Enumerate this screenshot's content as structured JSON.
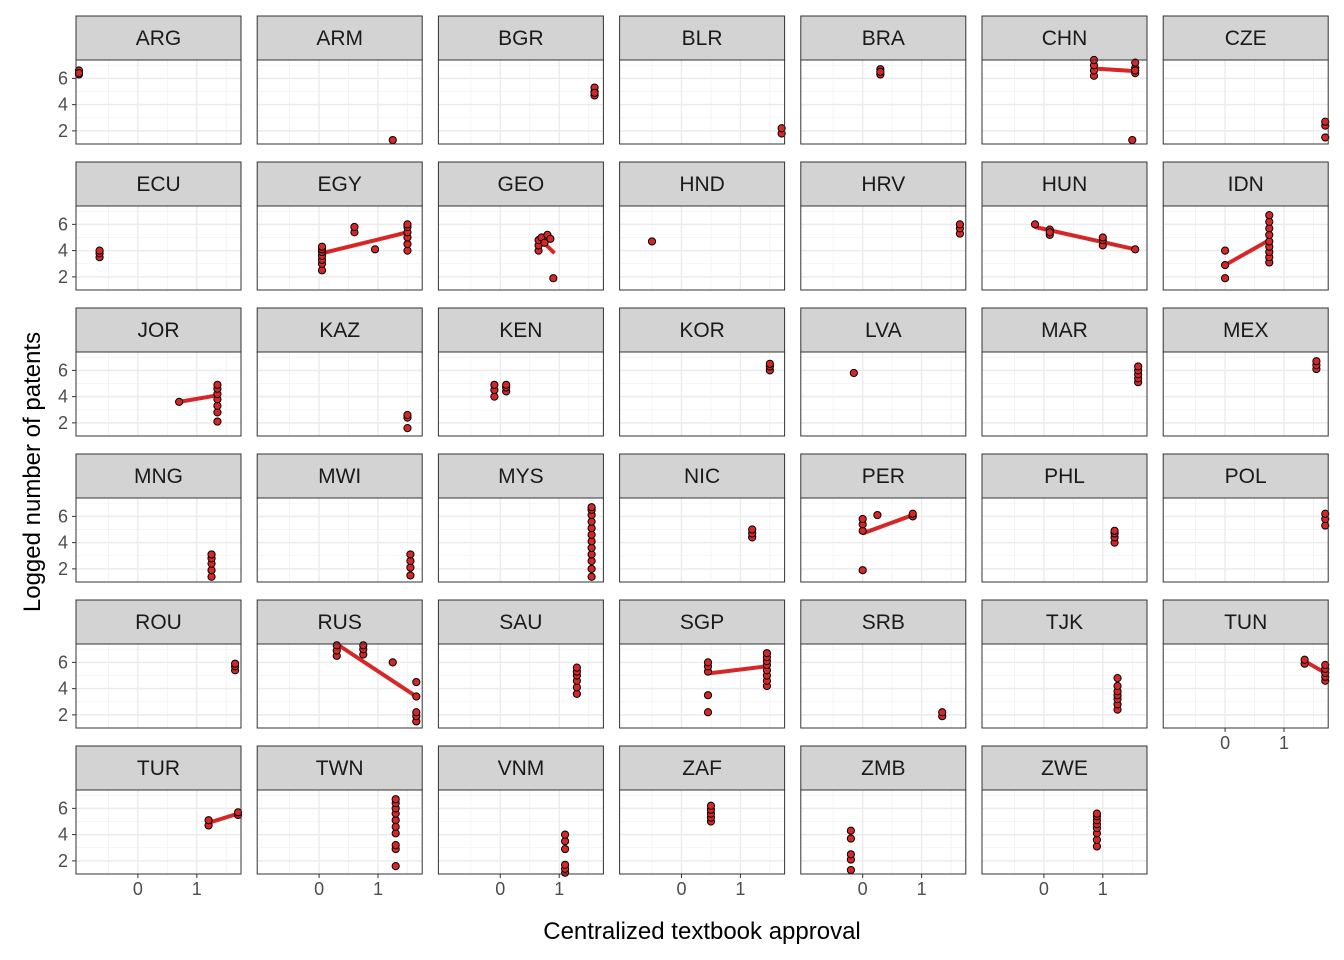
{
  "chart_data": {
    "type": "scatter",
    "facet_by": "country",
    "xlabel": "Centralized textbook approval",
    "ylabel": "Logged number of patents",
    "xlim": [
      -1.05,
      1.75
    ],
    "ylim": [
      1.0,
      7.4
    ],
    "x_ticks": [
      0,
      1
    ],
    "y_ticks": [
      2,
      4,
      6
    ],
    "grid": true,
    "point_fill": "#d62728",
    "point_stroke": "#000000",
    "fit_line_color": "#d62728",
    "strip_fill": "#d3d3d3",
    "panels": [
      {
        "label": "ARG",
        "points": [
          [
            -1.0,
            6.3
          ],
          [
            -1.0,
            6.6
          ],
          [
            -1.0,
            6.4
          ]
        ]
      },
      {
        "label": "ARM",
        "points": [
          [
            1.25,
            1.3
          ]
        ]
      },
      {
        "label": "BGR",
        "points": [
          [
            1.6,
            4.7
          ],
          [
            1.6,
            5.0
          ],
          [
            1.6,
            5.3
          ],
          [
            1.6,
            4.9
          ]
        ]
      },
      {
        "label": "BLR",
        "points": [
          [
            1.7,
            1.8
          ],
          [
            1.7,
            2.2
          ]
        ]
      },
      {
        "label": "BRA",
        "points": [
          [
            0.3,
            6.3
          ],
          [
            0.3,
            6.7
          ],
          [
            0.3,
            6.5
          ]
        ]
      },
      {
        "label": "CHN",
        "points": [
          [
            0.85,
            6.2
          ],
          [
            0.85,
            6.6
          ],
          [
            0.85,
            7.0
          ],
          [
            0.85,
            7.4
          ],
          [
            1.55,
            6.4
          ],
          [
            1.55,
            6.8
          ],
          [
            1.55,
            7.2
          ],
          [
            1.55,
            6.6
          ],
          [
            1.5,
            1.3
          ]
        ],
        "fit": [
          [
            0.85,
            6.75
          ],
          [
            1.55,
            6.55
          ]
        ]
      },
      {
        "label": "CZE",
        "points": [
          [
            1.7,
            1.5
          ],
          [
            1.7,
            2.4
          ],
          [
            1.7,
            2.7
          ]
        ]
      },
      {
        "label": "ECU",
        "points": [
          [
            -0.65,
            3.5
          ],
          [
            -0.65,
            3.8
          ],
          [
            -0.65,
            4.0
          ]
        ]
      },
      {
        "label": "EGY",
        "points": [
          [
            0.05,
            2.5
          ],
          [
            0.05,
            3.0
          ],
          [
            0.05,
            3.3
          ],
          [
            0.05,
            3.6
          ],
          [
            0.05,
            3.9
          ],
          [
            0.05,
            4.1
          ],
          [
            0.05,
            4.3
          ],
          [
            0.6,
            5.4
          ],
          [
            0.6,
            5.8
          ],
          [
            0.95,
            4.1
          ],
          [
            1.5,
            4.0
          ],
          [
            1.5,
            4.5
          ],
          [
            1.5,
            5.0
          ],
          [
            1.5,
            5.4
          ],
          [
            1.5,
            5.8
          ],
          [
            1.5,
            6.0
          ]
        ],
        "fit": [
          [
            0.05,
            3.8
          ],
          [
            1.5,
            5.4
          ]
        ]
      },
      {
        "label": "GEO",
        "points": [
          [
            0.65,
            4.0
          ],
          [
            0.65,
            4.4
          ],
          [
            0.65,
            4.8
          ],
          [
            0.7,
            5.0
          ],
          [
            0.75,
            4.6
          ],
          [
            0.8,
            5.2
          ],
          [
            0.85,
            4.9
          ],
          [
            0.9,
            1.9
          ]
        ],
        "fit": [
          [
            0.65,
            5.0
          ],
          [
            0.92,
            3.8
          ]
        ]
      },
      {
        "label": "HND",
        "points": [
          [
            -0.5,
            4.7
          ]
        ]
      },
      {
        "label": "HRV",
        "points": [
          [
            1.65,
            5.3
          ],
          [
            1.65,
            5.7
          ],
          [
            1.65,
            6.0
          ]
        ]
      },
      {
        "label": "HUN",
        "points": [
          [
            -0.15,
            6.0
          ],
          [
            0.1,
            5.2
          ],
          [
            0.1,
            5.6
          ],
          [
            0.1,
            5.4
          ],
          [
            1.0,
            4.4
          ],
          [
            1.0,
            4.8
          ],
          [
            1.0,
            5.0
          ],
          [
            1.55,
            4.1
          ]
        ],
        "fit": [
          [
            -0.15,
            5.8
          ],
          [
            1.55,
            4.1
          ]
        ]
      },
      {
        "label": "IDN",
        "points": [
          [
            0.0,
            1.9
          ],
          [
            0.0,
            2.9
          ],
          [
            0.0,
            4.0
          ],
          [
            0.75,
            3.1
          ],
          [
            0.75,
            3.5
          ],
          [
            0.75,
            3.9
          ],
          [
            0.75,
            4.3
          ],
          [
            0.75,
            4.7
          ],
          [
            0.75,
            5.2
          ],
          [
            0.75,
            5.7
          ],
          [
            0.75,
            6.2
          ],
          [
            0.75,
            6.7
          ]
        ],
        "fit": [
          [
            0.0,
            2.9
          ],
          [
            0.75,
            4.8
          ]
        ]
      },
      {
        "label": "JOR",
        "points": [
          [
            0.7,
            3.6
          ],
          [
            1.35,
            2.1
          ],
          [
            1.35,
            2.8
          ],
          [
            1.35,
            3.3
          ],
          [
            1.35,
            3.8
          ],
          [
            1.35,
            4.2
          ],
          [
            1.35,
            4.6
          ],
          [
            1.35,
            4.9
          ]
        ],
        "fit": [
          [
            0.7,
            3.6
          ],
          [
            1.35,
            4.1
          ]
        ]
      },
      {
        "label": "KAZ",
        "points": [
          [
            1.5,
            1.6
          ],
          [
            1.5,
            2.4
          ],
          [
            1.5,
            2.6
          ]
        ]
      },
      {
        "label": "KEN",
        "points": [
          [
            -0.1,
            4.0
          ],
          [
            -0.1,
            4.5
          ],
          [
            -0.1,
            4.9
          ],
          [
            0.1,
            4.4
          ],
          [
            0.1,
            4.7
          ],
          [
            0.1,
            4.9
          ]
        ]
      },
      {
        "label": "KOR",
        "points": [
          [
            1.5,
            6.0
          ],
          [
            1.5,
            6.3
          ],
          [
            1.5,
            6.5
          ]
        ]
      },
      {
        "label": "LVA",
        "points": [
          [
            -0.15,
            5.8
          ]
        ]
      },
      {
        "label": "MAR",
        "points": [
          [
            1.6,
            5.1
          ],
          [
            1.6,
            5.4
          ],
          [
            1.6,
            5.7
          ],
          [
            1.6,
            6.0
          ],
          [
            1.6,
            6.3
          ]
        ]
      },
      {
        "label": "MEX",
        "points": [
          [
            1.55,
            6.1
          ],
          [
            1.55,
            6.4
          ],
          [
            1.55,
            6.7
          ]
        ]
      },
      {
        "label": "MNG",
        "points": [
          [
            1.25,
            1.4
          ],
          [
            1.25,
            1.9
          ],
          [
            1.25,
            2.4
          ],
          [
            1.25,
            2.8
          ],
          [
            1.25,
            3.1
          ]
        ]
      },
      {
        "label": "MWI",
        "points": [
          [
            1.55,
            1.5
          ],
          [
            1.55,
            2.1
          ],
          [
            1.55,
            2.6
          ],
          [
            1.55,
            3.1
          ]
        ]
      },
      {
        "label": "MYS",
        "points": [
          [
            1.55,
            1.4
          ],
          [
            1.55,
            2.0
          ],
          [
            1.55,
            2.6
          ],
          [
            1.55,
            3.1
          ],
          [
            1.55,
            3.6
          ],
          [
            1.55,
            4.1
          ],
          [
            1.55,
            4.6
          ],
          [
            1.55,
            5.1
          ],
          [
            1.55,
            5.6
          ],
          [
            1.55,
            6.1
          ],
          [
            1.55,
            6.5
          ],
          [
            1.55,
            6.7
          ]
        ]
      },
      {
        "label": "NIC",
        "points": [
          [
            1.2,
            4.4
          ],
          [
            1.2,
            4.7
          ],
          [
            1.2,
            5.0
          ]
        ]
      },
      {
        "label": "PER",
        "points": [
          [
            0.0,
            1.9
          ],
          [
            0.0,
            4.9
          ],
          [
            0.0,
            5.4
          ],
          [
            0.0,
            5.8
          ],
          [
            0.25,
            6.1
          ],
          [
            0.85,
            6.0
          ],
          [
            0.85,
            6.2
          ]
        ],
        "fit": [
          [
            0.0,
            4.7
          ],
          [
            0.85,
            6.1
          ]
        ]
      },
      {
        "label": "PHL",
        "points": [
          [
            1.2,
            4.0
          ],
          [
            1.2,
            4.4
          ],
          [
            1.2,
            4.7
          ],
          [
            1.2,
            4.9
          ]
        ]
      },
      {
        "label": "POL",
        "points": [
          [
            1.7,
            5.3
          ],
          [
            1.7,
            5.8
          ],
          [
            1.7,
            6.2
          ]
        ]
      },
      {
        "label": "ROU",
        "points": [
          [
            1.65,
            5.4
          ],
          [
            1.65,
            5.7
          ],
          [
            1.65,
            5.9
          ]
        ]
      },
      {
        "label": "RUS",
        "points": [
          [
            0.3,
            6.5
          ],
          [
            0.3,
            6.9
          ],
          [
            0.3,
            7.3
          ],
          [
            0.75,
            6.6
          ],
          [
            0.75,
            7.0
          ],
          [
            0.75,
            7.3
          ],
          [
            1.25,
            6.0
          ],
          [
            1.65,
            1.5
          ],
          [
            1.65,
            1.9
          ],
          [
            1.65,
            2.2
          ],
          [
            1.65,
            3.4
          ],
          [
            1.65,
            4.5
          ]
        ],
        "fit": [
          [
            0.3,
            7.4
          ],
          [
            1.65,
            3.4
          ]
        ]
      },
      {
        "label": "SAU",
        "points": [
          [
            1.3,
            3.6
          ],
          [
            1.3,
            4.1
          ],
          [
            1.3,
            4.6
          ],
          [
            1.3,
            5.0
          ],
          [
            1.3,
            5.3
          ],
          [
            1.3,
            5.6
          ]
        ]
      },
      {
        "label": "SGP",
        "points": [
          [
            0.45,
            2.2
          ],
          [
            0.45,
            3.5
          ],
          [
            0.45,
            5.3
          ],
          [
            0.45,
            5.7
          ],
          [
            0.45,
            6.0
          ],
          [
            1.45,
            4.2
          ],
          [
            1.45,
            4.6
          ],
          [
            1.45,
            5.0
          ],
          [
            1.45,
            5.4
          ],
          [
            1.45,
            5.8
          ],
          [
            1.45,
            6.1
          ],
          [
            1.45,
            6.4
          ],
          [
            1.45,
            6.7
          ]
        ],
        "fit": [
          [
            0.45,
            5.15
          ],
          [
            1.45,
            5.7
          ]
        ]
      },
      {
        "label": "SRB",
        "points": [
          [
            1.35,
            1.9
          ],
          [
            1.35,
            2.2
          ]
        ]
      },
      {
        "label": "TJK",
        "points": [
          [
            1.25,
            2.4
          ],
          [
            1.25,
            2.8
          ],
          [
            1.25,
            3.2
          ],
          [
            1.25,
            3.5
          ],
          [
            1.25,
            3.8
          ],
          [
            1.25,
            4.2
          ],
          [
            1.25,
            4.8
          ]
        ]
      },
      {
        "label": "TUN",
        "points": [
          [
            1.35,
            5.9
          ],
          [
            1.35,
            6.2
          ],
          [
            1.7,
            4.6
          ],
          [
            1.7,
            4.9
          ],
          [
            1.7,
            5.2
          ],
          [
            1.7,
            5.5
          ],
          [
            1.7,
            5.8
          ]
        ],
        "fit": [
          [
            1.35,
            6.1
          ],
          [
            1.7,
            5.2
          ]
        ]
      },
      {
        "label": "TUR",
        "points": [
          [
            1.2,
            4.7
          ],
          [
            1.2,
            5.1
          ],
          [
            1.7,
            5.5
          ],
          [
            1.7,
            5.7
          ]
        ],
        "fit": [
          [
            1.2,
            4.9
          ],
          [
            1.7,
            5.6
          ]
        ]
      },
      {
        "label": "TWN",
        "points": [
          [
            1.3,
            1.6
          ],
          [
            1.3,
            2.9
          ],
          [
            1.3,
            3.2
          ],
          [
            1.3,
            4.1
          ],
          [
            1.3,
            4.6
          ],
          [
            1.3,
            5.1
          ],
          [
            1.3,
            5.6
          ],
          [
            1.3,
            6.0
          ],
          [
            1.3,
            6.4
          ],
          [
            1.3,
            6.7
          ]
        ]
      },
      {
        "label": "VNM",
        "points": [
          [
            1.1,
            1.1
          ],
          [
            1.1,
            1.4
          ],
          [
            1.1,
            1.7
          ],
          [
            1.1,
            2.9
          ],
          [
            1.1,
            3.5
          ],
          [
            1.1,
            4.0
          ]
        ]
      },
      {
        "label": "ZAF",
        "points": [
          [
            0.5,
            5.0
          ],
          [
            0.5,
            5.3
          ],
          [
            0.5,
            5.6
          ],
          [
            0.5,
            5.9
          ],
          [
            0.5,
            6.2
          ]
        ]
      },
      {
        "label": "ZMB",
        "points": [
          [
            -0.2,
            1.3
          ],
          [
            -0.2,
            2.1
          ],
          [
            -0.2,
            2.5
          ],
          [
            -0.2,
            3.7
          ],
          [
            -0.2,
            4.3
          ]
        ]
      },
      {
        "label": "ZWE",
        "points": [
          [
            0.9,
            3.1
          ],
          [
            0.9,
            3.6
          ],
          [
            0.9,
            4.1
          ],
          [
            0.9,
            4.5
          ],
          [
            0.9,
            4.8
          ],
          [
            0.9,
            5.1
          ],
          [
            0.9,
            5.4
          ],
          [
            0.9,
            5.6
          ]
        ]
      }
    ]
  }
}
